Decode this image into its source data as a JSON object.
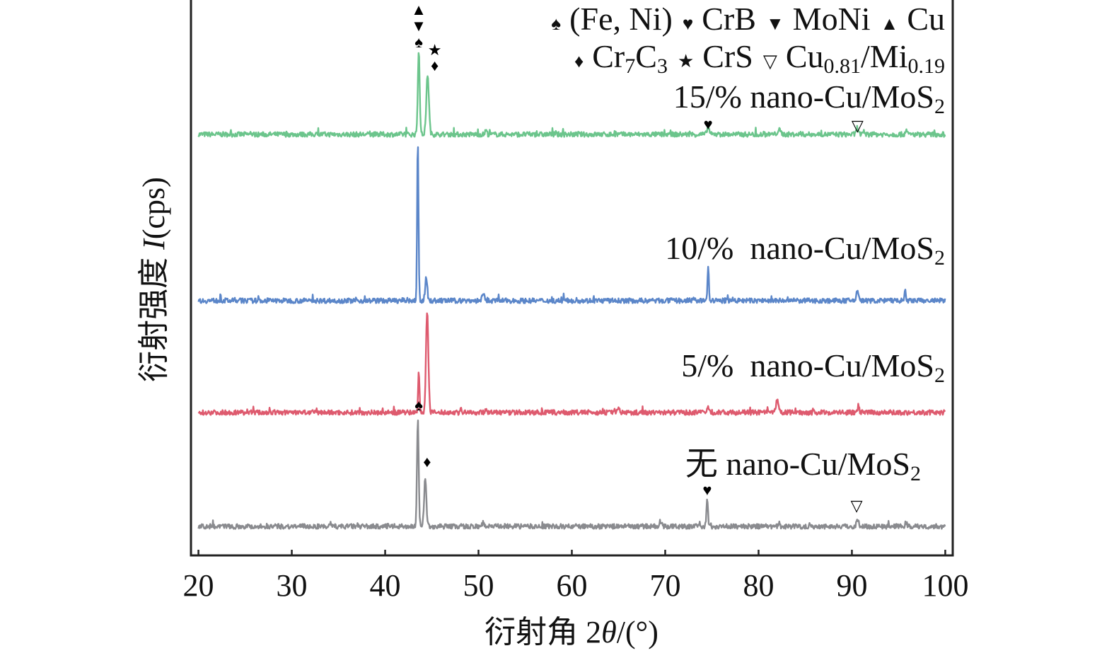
{
  "chart_data": {
    "type": "line",
    "title": "",
    "xlabel": {
      "prefix": "衍射角 2",
      "italic": "θ",
      "suffix": "/(°)"
    },
    "ylabel": {
      "prefix": "衍射强度 ",
      "italic": "I",
      "suffix": "(cps)"
    },
    "xlim": [
      19.2,
      100.8
    ],
    "ylim": [
      0,
      785
    ],
    "xticks": [
      20,
      30,
      40,
      50,
      60,
      70,
      80,
      90,
      100
    ],
    "yticks": [],
    "grid": false,
    "legend": {
      "placement": "top-right",
      "rows": [
        [
          {
            "symbol": "♠",
            "parts": [
              {
                "t": "(Fe, Ni)"
              }
            ]
          },
          {
            "symbol": "♥",
            "parts": [
              {
                "t": "CrB"
              }
            ]
          },
          {
            "symbol": "▼",
            "parts": [
              {
                "t": "MoNi"
              }
            ]
          },
          {
            "symbol": "▲",
            "parts": [
              {
                "t": "Cu"
              }
            ]
          }
        ],
        [
          {
            "symbol": "♦",
            "parts": [
              {
                "t": "Cr"
              },
              {
                "t": "7",
                "sub": true
              },
              {
                "t": "C"
              },
              {
                "t": "3",
                "sub": true
              }
            ]
          },
          {
            "symbol": "★",
            "parts": [
              {
                "t": "CrS"
              }
            ]
          },
          {
            "symbol": "▽",
            "parts": [
              {
                "t": "Cu"
              },
              {
                "t": "0.81",
                "sub": true
              },
              {
                "t": "/Mi"
              },
              {
                "t": "0.19",
                "sub": true
              }
            ]
          }
        ]
      ]
    },
    "series": [
      {
        "name": "15/% nano-Cu/MoS2",
        "label": {
          "main": "15/% nano-Cu/MoS",
          "sub": "2"
        },
        "color": "#6cc58c",
        "baseline": 595,
        "peaks": [
          [
            43.6,
            118,
            0.22
          ],
          [
            44.55,
            85,
            0.3
          ],
          [
            50.8,
            6,
            0.2
          ],
          [
            74.6,
            12,
            0.25
          ],
          [
            82.2,
            6,
            0.4
          ],
          [
            90.6,
            10,
            0.25
          ],
          [
            95.8,
            7,
            0.2
          ]
        ]
      },
      {
        "name": "10/% nano-Cu/MoS2",
        "label": {
          "main": "10/%  nano-Cu/MoS",
          "sub": "2"
        },
        "color": "#5b86c9",
        "baseline": 360,
        "peaks": [
          [
            43.5,
            228,
            0.16
          ],
          [
            44.4,
            32,
            0.25
          ],
          [
            50.5,
            8,
            0.3
          ],
          [
            74.6,
            48,
            0.16
          ],
          [
            90.6,
            16,
            0.25
          ],
          [
            95.7,
            13,
            0.15
          ]
        ]
      },
      {
        "name": "5/% nano-Cu/MoS2",
        "label": {
          "main": "5/%  nano-Cu/MoS",
          "sub": "2"
        },
        "color": "#de5a6e",
        "baseline": 202,
        "peaks": [
          [
            43.6,
            62,
            0.15
          ],
          [
            44.5,
            143,
            0.28
          ],
          [
            48.1,
            6,
            0.15
          ],
          [
            50.8,
            6,
            0.2
          ],
          [
            65,
            6,
            0.3
          ],
          [
            74.6,
            8,
            0.2
          ],
          [
            82.0,
            16,
            0.3
          ],
          [
            90.7,
            8,
            0.2
          ]
        ]
      },
      {
        "name": "无 nano-Cu/MoS2",
        "label": {
          "main": "无 nano-Cu/MoS",
          "sub": "2"
        },
        "color": "#8a8b8f",
        "baseline": 41,
        "peaks": [
          [
            43.5,
            150,
            0.2
          ],
          [
            44.3,
            70,
            0.25
          ],
          [
            50.5,
            5,
            0.3
          ],
          [
            69.5,
            7,
            0.3
          ],
          [
            74.5,
            37,
            0.18
          ],
          [
            90.6,
            10,
            0.25
          ],
          [
            95.8,
            6,
            0.2
          ]
        ]
      }
    ],
    "annotations": [
      {
        "symbol": "▲",
        "x": 43.6,
        "y": 766,
        "series": "15/% nano-Cu/MoS2"
      },
      {
        "symbol": "▼",
        "x": 43.6,
        "y": 751,
        "series": "15/% nano-Cu/MoS2"
      },
      {
        "symbol": "♠",
        "x": 43.6,
        "y": 728,
        "series": "15/% nano-Cu/MoS2"
      },
      {
        "symbol": "★",
        "x": 44.7,
        "y": 710,
        "series": "15/% nano-Cu/MoS2"
      },
      {
        "symbol": "♦",
        "x": 44.7,
        "y": 693,
        "series": "15/% nano-Cu/MoS2"
      },
      {
        "symbol": "♥",
        "x": 74.6,
        "y": 613,
        "series": "15/% nano-Cu/MoS2"
      },
      {
        "symbol": "▽",
        "x": 90.6,
        "y": 611,
        "series": "15/% nano-Cu/MoS2"
      },
      {
        "symbol": "♠",
        "x": 43.6,
        "y": 205,
        "series": "5/% nano-Cu/MoS2"
      },
      {
        "symbol": "♦",
        "x": 44.5,
        "y": 125,
        "series": "无 nano-Cu/MoS2"
      },
      {
        "symbol": "♥",
        "x": 74.5,
        "y": 91,
        "series": "无 nano-Cu/MoS2"
      },
      {
        "symbol": "▽",
        "x": 90.5,
        "y": 63,
        "series": "无 nano-Cu/MoS2"
      }
    ]
  }
}
